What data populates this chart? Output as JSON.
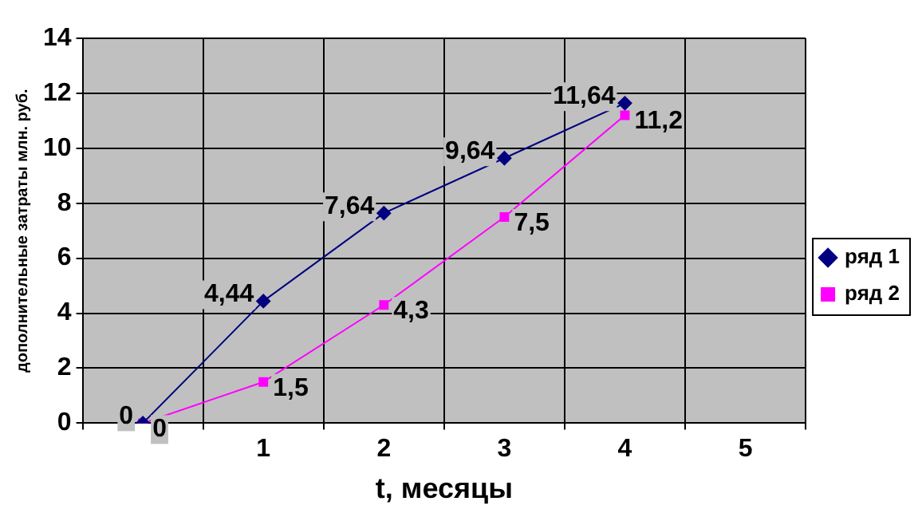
{
  "chart_data": {
    "type": "line",
    "xlabel": "t, месяцы",
    "ylabel": "дополнительные затраты млн. руб.",
    "categories": [
      null,
      "1",
      "2",
      "3",
      "4",
      "5"
    ],
    "series": [
      {
        "name": "ряд 1",
        "color": "#000080",
        "marker": "diamond",
        "values": [
          0,
          4.44,
          7.64,
          9.64,
          11.64,
          null
        ],
        "value_labels": [
          "0",
          "4,44",
          "7,64",
          "9,64",
          "11,64",
          null
        ]
      },
      {
        "name": "ряд 2",
        "color": "#ff00ff",
        "marker": "square",
        "values": [
          0,
          1.5,
          4.3,
          7.5,
          11.2,
          null
        ],
        "value_labels": [
          "0",
          "1,5",
          "4,3",
          "7,5",
          "11,2",
          null
        ]
      }
    ],
    "ylim": [
      0,
      14
    ],
    "yticks": [
      0,
      2,
      4,
      6,
      8,
      10,
      12,
      14
    ],
    "grid": true,
    "legend": "right"
  }
}
